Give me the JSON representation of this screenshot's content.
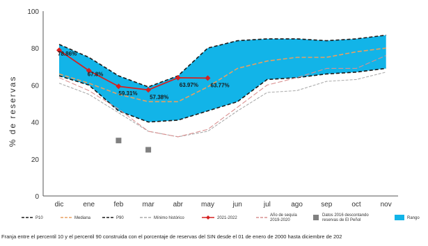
{
  "chart_data": {
    "type": "line",
    "x": [
      "dic",
      "ene",
      "feb",
      "mar",
      "abr",
      "may",
      "jun",
      "jul",
      "ago",
      "sep",
      "oct",
      "nov"
    ],
    "ylabel": "% de reservas",
    "xlabel": "",
    "ylim": [
      0,
      100
    ],
    "yticks": [
      0,
      20,
      40,
      60,
      80,
      100
    ],
    "grid": false,
    "series": [
      {
        "name": "P10",
        "values": [
          65,
          60,
          46,
          40,
          41,
          46,
          51,
          63,
          64,
          66,
          67,
          69
        ],
        "color": "#1a1a1a",
        "style": "dashed"
      },
      {
        "name": "Mediana",
        "values": [
          66,
          61,
          55,
          51,
          51,
          59,
          69,
          73,
          75,
          75,
          78,
          80
        ],
        "color": "#e8a060",
        "style": "dashed"
      },
      {
        "name": "P90",
        "values": [
          82,
          75,
          65,
          59,
          65,
          80,
          84,
          85,
          85,
          84,
          85,
          87
        ],
        "color": "#1a1a1a",
        "style": "dashed"
      },
      {
        "name": "Mínimo histórico",
        "values": [
          61,
          55,
          45,
          35,
          32,
          35,
          46,
          56,
          57,
          62,
          63,
          67
        ],
        "color": "#aaaaaa",
        "style": "dashed"
      },
      {
        "name": "2021-2022",
        "values": [
          78.86,
          67.8,
          59.31,
          57.38,
          63.97,
          63.77,
          null,
          null,
          null,
          null,
          null,
          null
        ],
        "color": "#d62020",
        "style": "solid-marker"
      },
      {
        "name": "Año de sequía 2019-2020",
        "values": [
          64,
          57,
          47,
          35,
          32,
          36,
          48,
          60,
          64,
          69,
          69,
          76
        ],
        "color": "#d99090",
        "style": "dashed"
      }
    ],
    "scatter": {
      "name": "Datos 2016 descontando reservas de El Peñol",
      "points": [
        {
          "x": "feb",
          "y": 30
        },
        {
          "x": "mar",
          "y": 25
        }
      ],
      "color": "#808080"
    },
    "band": {
      "name": "Rango",
      "from": "P10",
      "to": "P90",
      "color": "#12b4e8"
    },
    "data_labels": [
      "78.86%",
      "67.8%",
      "59.31%",
      "57.38%",
      "63.97%",
      "63.77%"
    ],
    "legend": [
      {
        "label": "P10",
        "color": "#1a1a1a",
        "kind": "dash"
      },
      {
        "label": "Mediana",
        "color": "#e8a060",
        "kind": "dash"
      },
      {
        "label": "P90",
        "color": "#1a1a1a",
        "kind": "dash"
      },
      {
        "label": "Mínimo histórico",
        "color": "#aaaaaa",
        "kind": "dash"
      },
      {
        "label": "2021-2022",
        "color": "#d62020",
        "kind": "marker"
      },
      {
        "label": "Año de sequía\n2019-2020",
        "color": "#d99090",
        "kind": "dash"
      },
      {
        "label": "Datos 2016 descontando\nreservas de El Peñol",
        "color": "#808080",
        "kind": "square"
      },
      {
        "label": "Rango",
        "color": "#12b4e8",
        "kind": "box"
      }
    ],
    "legend_position": "bottom"
  },
  "caption": "Franja entre el percentil 10 y el percentil 90 construida con el porcentaje de reservas del SIN desde el 01 de enero de 2000 hasta diciembre de 202"
}
